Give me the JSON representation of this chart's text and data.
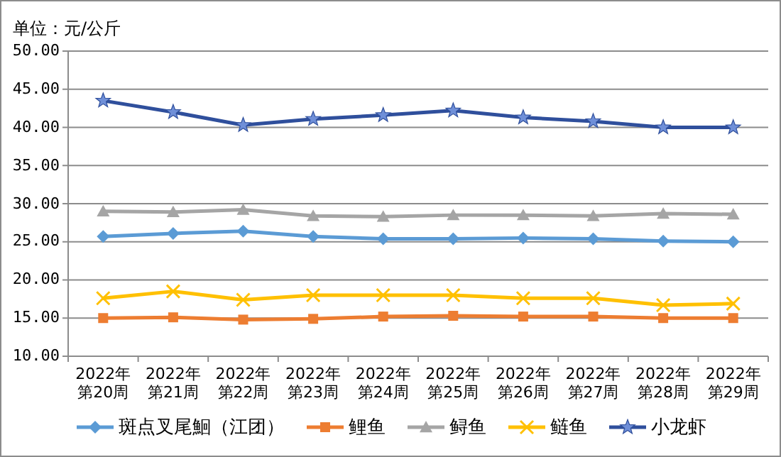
{
  "chart_data": {
    "type": "line",
    "ylabel": "单位：元/公斤",
    "categories": [
      "2022年第20周",
      "2022年第21周",
      "2022年第22周",
      "2022年第23周",
      "2022年第24周",
      "2022年第25周",
      "2022年第26周",
      "2022年第27周",
      "2022年第28周",
      "2022年第29周"
    ],
    "series": [
      {
        "name": "斑点叉尾鮰（江团）",
        "color": "#5b9bd5",
        "marker": "diamond",
        "values": [
          25.7,
          26.1,
          26.4,
          25.7,
          25.4,
          25.4,
          25.5,
          25.4,
          25.1,
          25.0
        ]
      },
      {
        "name": "鲤鱼",
        "color": "#ed7d31",
        "marker": "square",
        "values": [
          15.0,
          15.1,
          14.8,
          14.9,
          15.2,
          15.3,
          15.2,
          15.2,
          15.0,
          15.0
        ]
      },
      {
        "name": "鲟鱼",
        "color": "#a5a5a5",
        "marker": "triangle",
        "values": [
          29.0,
          28.9,
          29.2,
          28.4,
          28.3,
          28.5,
          28.5,
          28.4,
          28.7,
          28.6
        ]
      },
      {
        "name": "鲢鱼",
        "color": "#ffc000",
        "marker": "cross",
        "values": [
          17.6,
          18.5,
          17.4,
          18.0,
          18.0,
          18.0,
          17.6,
          17.6,
          16.7,
          16.9
        ]
      },
      {
        "name": "小龙虾",
        "color": "#2f4f9c",
        "marker": "star",
        "values": [
          43.5,
          42.0,
          40.3,
          41.1,
          41.6,
          42.2,
          41.3,
          40.8,
          40.0,
          40.0
        ]
      }
    ],
    "ylim": [
      10,
      50
    ],
    "yticks": [
      {
        "value": 10,
        "label": "10.00"
      },
      {
        "value": 15,
        "label": "15.00"
      },
      {
        "value": 20,
        "label": "20.00"
      },
      {
        "value": 25,
        "label": "25.00"
      },
      {
        "value": 30,
        "label": "30.00"
      },
      {
        "value": 35,
        "label": "35.00"
      },
      {
        "value": 40,
        "label": "40.00"
      },
      {
        "value": 45,
        "label": "45.00"
      },
      {
        "value": 50,
        "label": "50.00"
      }
    ],
    "grid": "y",
    "legend": "bottom"
  }
}
